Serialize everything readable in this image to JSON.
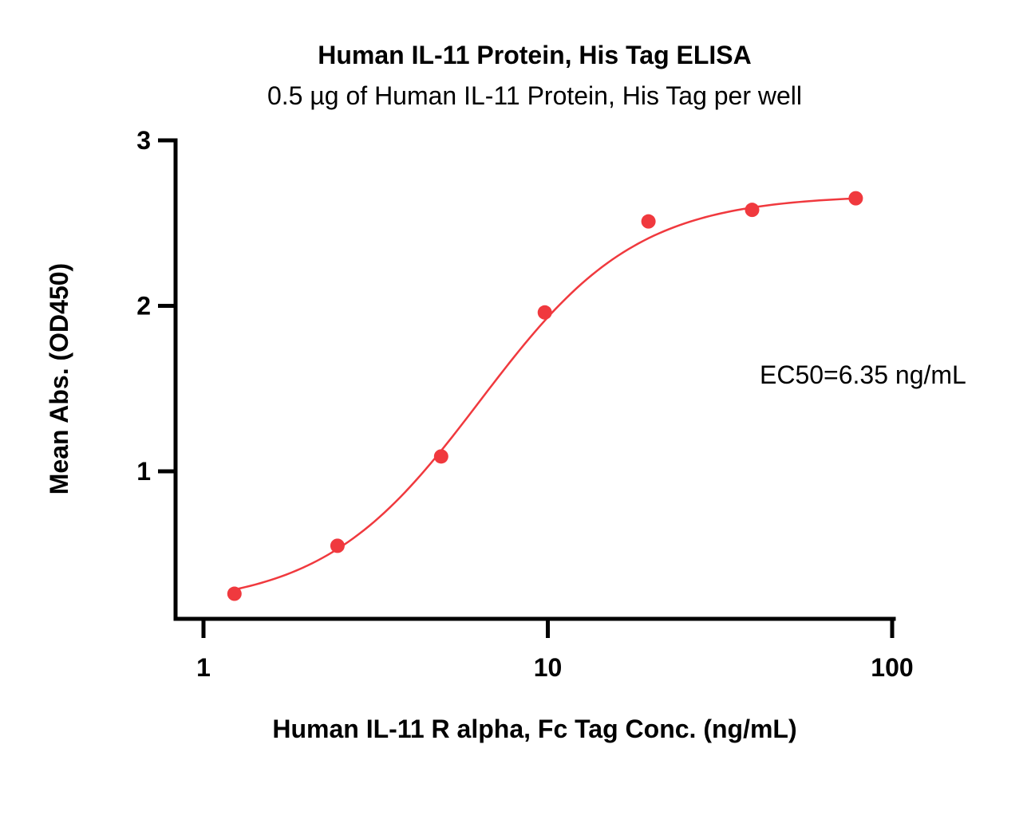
{
  "chart_data": {
    "type": "scatter",
    "title": "Human IL-11 Protein, His Tag ELISA",
    "subtitle": "0.5 µg of Human IL-11 Protein, His Tag per well",
    "xlabel": "Human IL-11 R alpha, Fc Tag Conc. (ng/mL)",
    "ylabel": "Mean Abs. (OD450)",
    "x_scale": "log",
    "xlim": [
      1,
      100
    ],
    "ylim": [
      0.07,
      3
    ],
    "x_ticks": [
      {
        "value": 1,
        "label": "1"
      },
      {
        "value": 10,
        "label": "10"
      },
      {
        "value": 100,
        "label": "100"
      }
    ],
    "y_ticks": [
      {
        "value": 1,
        "label": "1"
      },
      {
        "value": 2,
        "label": "2"
      },
      {
        "value": 3,
        "label": "3"
      }
    ],
    "grid": false,
    "legend": "none",
    "series": [
      {
        "color": "#f0393e",
        "x": [
          1.23,
          2.45,
          4.9,
          9.8,
          19.6,
          39.2,
          78.4
        ],
        "y": [
          0.26,
          0.55,
          1.09,
          1.96,
          2.51,
          2.58,
          2.65
        ]
      }
    ],
    "fit_curve": {
      "model": "4PL",
      "bottom": 0.18,
      "top": 2.67,
      "ec50": 6.35,
      "hill": 1.9,
      "color": "#f0393e"
    },
    "annotation": "EC50=6.35 ng/mL"
  }
}
